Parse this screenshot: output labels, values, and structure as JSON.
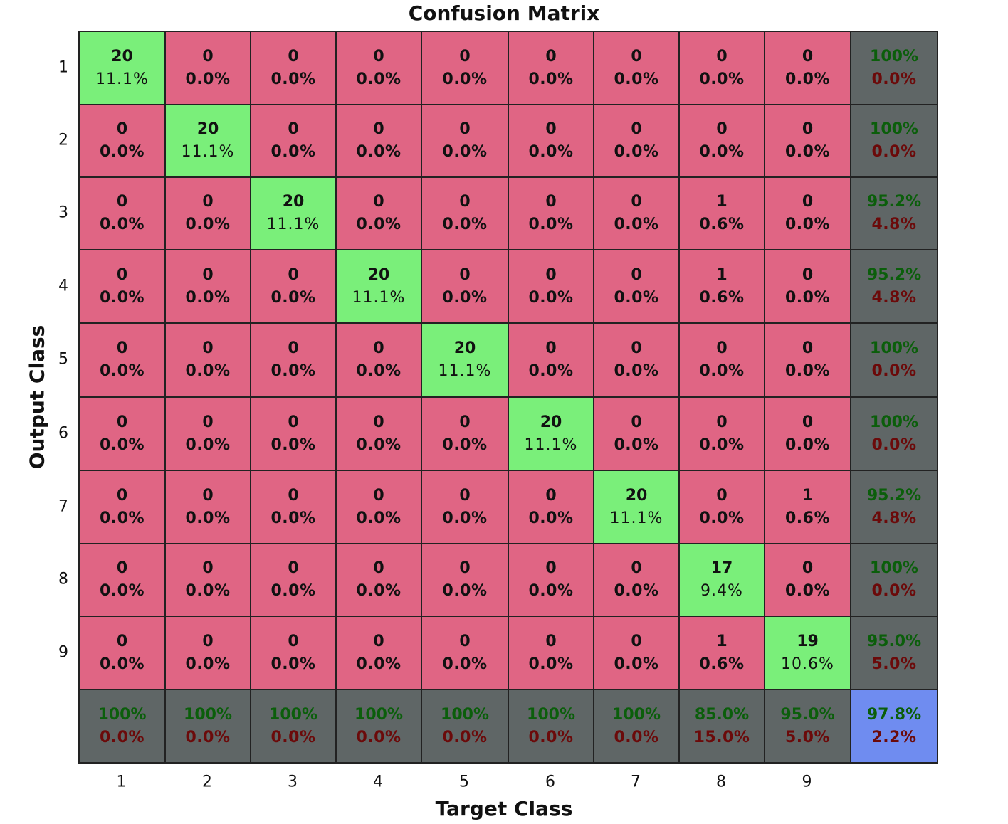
{
  "chart_data": {
    "type": "heatmap",
    "title": "Confusion Matrix",
    "xlabel": "Target Class",
    "ylabel": "Output Class",
    "x_ticks": [
      "1",
      "2",
      "3",
      "4",
      "5",
      "6",
      "7",
      "8",
      "9"
    ],
    "y_ticks": [
      "1",
      "2",
      "3",
      "4",
      "5",
      "6",
      "7",
      "8",
      "9"
    ],
    "counts": [
      [
        20,
        0,
        0,
        0,
        0,
        0,
        0,
        0,
        0
      ],
      [
        0,
        20,
        0,
        0,
        0,
        0,
        0,
        0,
        0
      ],
      [
        0,
        0,
        20,
        0,
        0,
        0,
        0,
        1,
        0
      ],
      [
        0,
        0,
        0,
        20,
        0,
        0,
        0,
        1,
        0
      ],
      [
        0,
        0,
        0,
        0,
        20,
        0,
        0,
        0,
        0
      ],
      [
        0,
        0,
        0,
        0,
        0,
        20,
        0,
        0,
        0
      ],
      [
        0,
        0,
        0,
        0,
        0,
        0,
        20,
        0,
        1
      ],
      [
        0,
        0,
        0,
        0,
        0,
        0,
        0,
        17,
        0
      ],
      [
        0,
        0,
        0,
        0,
        0,
        0,
        0,
        1,
        19
      ]
    ],
    "percents": [
      [
        "11.1%",
        "0.0%",
        "0.0%",
        "0.0%",
        "0.0%",
        "0.0%",
        "0.0%",
        "0.0%",
        "0.0%"
      ],
      [
        "0.0%",
        "11.1%",
        "0.0%",
        "0.0%",
        "0.0%",
        "0.0%",
        "0.0%",
        "0.0%",
        "0.0%"
      ],
      [
        "0.0%",
        "0.0%",
        "11.1%",
        "0.0%",
        "0.0%",
        "0.0%",
        "0.0%",
        "0.6%",
        "0.0%"
      ],
      [
        "0.0%",
        "0.0%",
        "0.0%",
        "11.1%",
        "0.0%",
        "0.0%",
        "0.0%",
        "0.6%",
        "0.0%"
      ],
      [
        "0.0%",
        "0.0%",
        "0.0%",
        "0.0%",
        "11.1%",
        "0.0%",
        "0.0%",
        "0.0%",
        "0.0%"
      ],
      [
        "0.0%",
        "0.0%",
        "0.0%",
        "0.0%",
        "0.0%",
        "11.1%",
        "0.0%",
        "0.0%",
        "0.0%"
      ],
      [
        "0.0%",
        "0.0%",
        "0.0%",
        "0.0%",
        "0.0%",
        "0.0%",
        "11.1%",
        "0.0%",
        "0.6%"
      ],
      [
        "0.0%",
        "0.0%",
        "0.0%",
        "0.0%",
        "0.0%",
        "0.0%",
        "0.0%",
        "9.4%",
        "0.0%"
      ],
      [
        "0.0%",
        "0.0%",
        "0.0%",
        "0.0%",
        "0.0%",
        "0.0%",
        "0.0%",
        "0.6%",
        "10.6%"
      ]
    ],
    "row_summary": [
      [
        "100%",
        "0.0%"
      ],
      [
        "100%",
        "0.0%"
      ],
      [
        "95.2%",
        "4.8%"
      ],
      [
        "95.2%",
        "4.8%"
      ],
      [
        "100%",
        "0.0%"
      ],
      [
        "100%",
        "0.0%"
      ],
      [
        "95.2%",
        "4.8%"
      ],
      [
        "100%",
        "0.0%"
      ],
      [
        "95.0%",
        "5.0%"
      ]
    ],
    "col_summary": [
      [
        "100%",
        "0.0%"
      ],
      [
        "100%",
        "0.0%"
      ],
      [
        "100%",
        "0.0%"
      ],
      [
        "100%",
        "0.0%"
      ],
      [
        "100%",
        "0.0%"
      ],
      [
        "100%",
        "0.0%"
      ],
      [
        "100%",
        "0.0%"
      ],
      [
        "85.0%",
        "15.0%"
      ],
      [
        "95.0%",
        "5.0%"
      ]
    ],
    "overall": [
      "97.8%",
      "2.2%"
    ],
    "colors": {
      "correct": "#7aef7a",
      "incorrect": "#e06584",
      "summary": "#5f6666",
      "overall": "#6f8cf0"
    }
  }
}
